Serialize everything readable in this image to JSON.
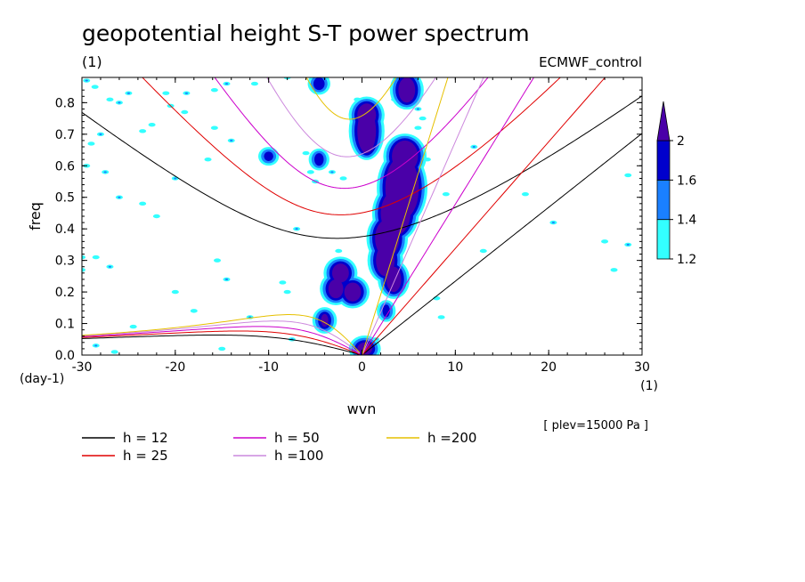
{
  "title": "geopotential height S-T power spectrum",
  "subtitle_left": "(1)",
  "subtitle_right": "ECMWF_control",
  "footnote": "[ plev=15000 Pa ]",
  "chart_data": {
    "type": "heatmap",
    "xlabel": "wvn",
    "ylabel": "freq",
    "x_unit_label": "(1)",
    "y_unit_label": "(day-1)",
    "xlim": [
      -30,
      30
    ],
    "ylim": [
      0,
      0.88
    ],
    "x_ticks": [
      -30,
      -20,
      -10,
      0,
      10,
      20,
      30
    ],
    "y_ticks": [
      0,
      0.1,
      0.2,
      0.3,
      0.4,
      0.5,
      0.6,
      0.7,
      0.8
    ],
    "x_tick_labels": [
      "-30",
      "-20",
      "-10",
      "0",
      "10",
      "20",
      "30"
    ],
    "y_tick_labels": [
      "0.0",
      "0.1",
      "0.2",
      "0.3",
      "0.4",
      "0.5",
      "0.6",
      "0.7",
      "0.8"
    ],
    "colorbar": {
      "levels": [
        1.2,
        1.4,
        1.6,
        2
      ],
      "labels": [
        "1.2",
        "1.4",
        "1.6",
        "2"
      ],
      "colors": [
        "#33ffff",
        "#1a80ff",
        "#0000cc",
        "#4a00a8"
      ]
    },
    "dispersion_curves": [
      {
        "label": "h = 12",
        "color": "#000000"
      },
      {
        "label": "h = 25",
        "color": "#e00000"
      },
      {
        "label": "h = 50",
        "color": "#cc00cc"
      },
      {
        "label": "h =100",
        "color": "#cc88dd"
      },
      {
        "label": "h =200",
        "color": "#e6c000"
      }
    ],
    "blobs": [
      {
        "x": 0.5,
        "y": 0.71,
        "rx": 1.0,
        "ry": 0.07,
        "level": 3
      },
      {
        "x": 0.5,
        "y": 0.76,
        "rx": 0.7,
        "ry": 0.03,
        "level": 4
      },
      {
        "x": 4.8,
        "y": 0.84,
        "rx": 0.9,
        "ry": 0.04,
        "level": 3
      },
      {
        "x": 4.6,
        "y": 0.63,
        "rx": 1.4,
        "ry": 0.05,
        "level": 3
      },
      {
        "x": 4.3,
        "y": 0.53,
        "rx": 1.8,
        "ry": 0.1,
        "level": 3
      },
      {
        "x": 4.6,
        "y": 0.55,
        "rx": 0.9,
        "ry": 0.06,
        "level": 4
      },
      {
        "x": 3.6,
        "y": 0.45,
        "rx": 1.6,
        "ry": 0.07,
        "level": 3
      },
      {
        "x": 3.4,
        "y": 0.47,
        "rx": 0.9,
        "ry": 0.04,
        "level": 4
      },
      {
        "x": 2.7,
        "y": 0.37,
        "rx": 1.3,
        "ry": 0.06,
        "level": 3
      },
      {
        "x": 2.7,
        "y": 0.38,
        "rx": 0.8,
        "ry": 0.04,
        "level": 4
      },
      {
        "x": 2.5,
        "y": 0.3,
        "rx": 1.0,
        "ry": 0.05,
        "level": 3
      },
      {
        "x": 3.4,
        "y": 0.24,
        "rx": 0.8,
        "ry": 0.04,
        "level": 3
      },
      {
        "x": -2.3,
        "y": 0.26,
        "rx": 0.9,
        "ry": 0.03,
        "level": 3
      },
      {
        "x": -2.8,
        "y": 0.21,
        "rx": 0.8,
        "ry": 0.03,
        "level": 3
      },
      {
        "x": -1.0,
        "y": 0.2,
        "rx": 0.9,
        "ry": 0.03,
        "level": 3
      },
      {
        "x": -4.0,
        "y": 0.11,
        "rx": 0.4,
        "ry": 0.02,
        "level": 3
      },
      {
        "x": 0.3,
        "y": 0.02,
        "rx": 0.8,
        "ry": 0.02,
        "level": 3
      },
      {
        "x": -4.6,
        "y": 0.86,
        "rx": 0.6,
        "ry": 0.02,
        "level": 2
      },
      {
        "x": 2.6,
        "y": 0.14,
        "rx": 0.4,
        "ry": 0.02,
        "level": 2
      },
      {
        "x": -10.0,
        "y": 0.63,
        "rx": 0.5,
        "ry": 0.015,
        "level": 2
      },
      {
        "x": -4.6,
        "y": 0.62,
        "rx": 0.5,
        "ry": 0.02,
        "level": 2
      }
    ],
    "cyan_spots": [
      [
        -29.5,
        0.87
      ],
      [
        -28.6,
        0.85
      ],
      [
        -27.0,
        0.81
      ],
      [
        -25.0,
        0.83
      ],
      [
        -21.0,
        0.83
      ],
      [
        -15.8,
        0.84
      ],
      [
        -14.5,
        0.86
      ],
      [
        -11.5,
        0.86
      ],
      [
        -8.0,
        0.88
      ],
      [
        -18.8,
        0.83
      ],
      [
        -20.5,
        0.79
      ],
      [
        -19.0,
        0.77
      ],
      [
        -26.0,
        0.8
      ],
      [
        -22.5,
        0.73
      ],
      [
        -23.5,
        0.71
      ],
      [
        -28.0,
        0.7
      ],
      [
        -29.0,
        0.67
      ],
      [
        -29.5,
        0.6
      ],
      [
        -27.5,
        0.58
      ],
      [
        -16.5,
        0.62
      ],
      [
        -15.8,
        0.72
      ],
      [
        -14.0,
        0.68
      ],
      [
        -6.0,
        0.64
      ],
      [
        -5.5,
        0.58
      ],
      [
        -3.2,
        0.58
      ],
      [
        -5.0,
        0.55
      ],
      [
        -2.0,
        0.56
      ],
      [
        -20.0,
        0.56
      ],
      [
        -23.5,
        0.48
      ],
      [
        -22.0,
        0.44
      ],
      [
        -26.0,
        0.5
      ],
      [
        -30.0,
        0.31
      ],
      [
        -28.5,
        0.31
      ],
      [
        -27.0,
        0.28
      ],
      [
        -30.0,
        0.27
      ],
      [
        -15.5,
        0.3
      ],
      [
        -14.5,
        0.24
      ],
      [
        -8.5,
        0.23
      ],
      [
        -8.0,
        0.2
      ],
      [
        -7.0,
        0.4
      ],
      [
        -3.0,
        0.18
      ],
      [
        -24.5,
        0.09
      ],
      [
        -28.5,
        0.03
      ],
      [
        -26.5,
        0.01
      ],
      [
        -15.0,
        0.02
      ],
      [
        -7.5,
        0.05
      ],
      [
        -20.0,
        0.2
      ],
      [
        -18.0,
        0.14
      ],
      [
        -12.0,
        0.12
      ],
      [
        8.5,
        0.12
      ],
      [
        8.0,
        0.18
      ],
      [
        6.0,
        0.78
      ],
      [
        6.5,
        0.75
      ],
      [
        6.0,
        0.72
      ],
      [
        6.0,
        0.66
      ],
      [
        7.0,
        0.62
      ],
      [
        9.0,
        0.51
      ],
      [
        12.0,
        0.66
      ],
      [
        13.0,
        0.33
      ],
      [
        17.5,
        0.51
      ],
      [
        20.5,
        0.42
      ],
      [
        26.0,
        0.36
      ],
      [
        27.0,
        0.27
      ],
      [
        28.5,
        0.35
      ],
      [
        28.5,
        0.57
      ],
      [
        -2.5,
        0.33
      ],
      [
        2.0,
        0.49
      ],
      [
        -0.5,
        0.81
      ],
      [
        3.5,
        0.81
      ],
      [
        1.5,
        0.05
      ]
    ]
  }
}
